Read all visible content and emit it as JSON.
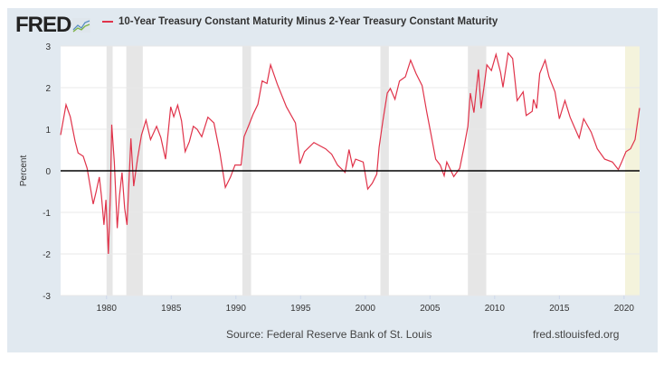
{
  "header": {
    "logo": "FRED",
    "legend_label": "10-Year Treasury Constant Maturity Minus 2-Year Treasury Constant Maturity"
  },
  "footer": {
    "source": "Source: Federal Reserve Bank of St. Louis",
    "site": "fred.stlouisfed.org"
  },
  "colors": {
    "series": "#e0334a",
    "recession": "#e6e6e6",
    "highlight": "#f4f3dc",
    "panel": "#e1e9f0"
  },
  "chart_data": {
    "type": "line",
    "title": "",
    "xlabel": "",
    "ylabel": "Percent",
    "xlim": [
      1976.45,
      2021.2
    ],
    "ylim": [
      -3,
      3
    ],
    "yticks": [
      "3",
      "2",
      "1",
      "0",
      "-1",
      "-2",
      "-3"
    ],
    "xticks": [
      "1980",
      "1985",
      "1990",
      "1995",
      "2000",
      "2005",
      "2010",
      "2015",
      "2020"
    ],
    "grid": true,
    "legend_position": "top",
    "recessions": [
      [
        1980.0,
        1980.47
      ],
      [
        1981.53,
        1982.8
      ],
      [
        1990.5,
        1991.17
      ],
      [
        2001.17,
        2001.82
      ],
      [
        2007.93,
        2009.35
      ]
    ],
    "highlight_band": [
      2020.08,
      2021.2
    ],
    "series": [
      {
        "name": "10-Year Treasury Constant Maturity Minus 2-Year Treasury Constant Maturity",
        "x": [
          1976.45,
          1976.87,
          1977.2,
          1977.57,
          1977.8,
          1978.2,
          1978.5,
          1978.97,
          1979.2,
          1979.44,
          1979.6,
          1979.8,
          1979.95,
          1980.14,
          1980.3,
          1980.4,
          1980.6,
          1980.83,
          1981.0,
          1981.2,
          1981.4,
          1981.58,
          1981.88,
          1982.1,
          1982.4,
          1982.7,
          1983.05,
          1983.4,
          1983.87,
          1984.2,
          1984.56,
          1984.96,
          1985.2,
          1985.5,
          1985.8,
          1986.08,
          1986.4,
          1986.71,
          1987.0,
          1987.36,
          1987.83,
          1988.3,
          1988.76,
          1989.18,
          1989.58,
          1989.93,
          1990.4,
          1990.63,
          1991.0,
          1991.33,
          1991.7,
          1992.03,
          1992.4,
          1992.68,
          1993.2,
          1993.9,
          1994.6,
          1994.95,
          1995.3,
          1996.03,
          1996.5,
          1996.92,
          1997.4,
          1997.85,
          1998.44,
          1998.74,
          1999.02,
          1999.25,
          1999.84,
          2000.19,
          2000.54,
          2000.89,
          2001.07,
          2001.35,
          2001.7,
          2001.94,
          2002.29,
          2002.64,
          2003.1,
          2003.5,
          2003.92,
          2004.39,
          2004.74,
          2005.09,
          2005.44,
          2005.79,
          2006.1,
          2006.3,
          2006.84,
          2007.3,
          2007.65,
          2007.93,
          2008.12,
          2008.4,
          2008.75,
          2008.94,
          2009.17,
          2009.4,
          2009.75,
          2010.1,
          2010.45,
          2010.64,
          2011.04,
          2011.39,
          2011.74,
          2012.2,
          2012.44,
          2012.9,
          2013.0,
          2013.25,
          2013.48,
          2013.9,
          2014.2,
          2014.66,
          2015.0,
          2015.43,
          2015.83,
          2016.18,
          2016.53,
          2016.88,
          2017.46,
          2017.93,
          2018.5,
          2019.1,
          2019.56,
          2019.8,
          2020.15,
          2020.5,
          2020.85,
          2021.2
        ],
        "values": [
          0.86,
          1.59,
          1.3,
          0.71,
          0.43,
          0.35,
          0.06,
          -0.8,
          -0.5,
          -0.15,
          -0.6,
          -1.3,
          -0.7,
          -2.0,
          -0.5,
          1.11,
          0.2,
          -1.38,
          -0.6,
          -0.04,
          -0.9,
          -1.3,
          0.78,
          -0.37,
          0.3,
          0.86,
          1.22,
          0.75,
          1.07,
          0.8,
          0.28,
          1.54,
          1.3,
          1.58,
          1.2,
          0.46,
          0.7,
          1.07,
          1.0,
          0.82,
          1.29,
          1.15,
          0.43,
          -0.4,
          -0.15,
          0.14,
          0.14,
          0.82,
          1.1,
          1.36,
          1.6,
          2.16,
          2.1,
          2.55,
          2.08,
          1.54,
          1.15,
          0.17,
          0.46,
          0.68,
          0.6,
          0.53,
          0.4,
          0.14,
          -0.04,
          0.51,
          0.1,
          0.28,
          0.21,
          -0.44,
          -0.3,
          -0.08,
          0.57,
          1.18,
          1.87,
          1.98,
          1.72,
          2.16,
          2.26,
          2.66,
          2.34,
          2.05,
          1.43,
          0.86,
          0.28,
          0.14,
          -0.12,
          0.21,
          -0.14,
          0.06,
          0.6,
          1.07,
          1.87,
          1.4,
          2.44,
          1.5,
          2.01,
          2.55,
          2.41,
          2.8,
          2.37,
          2.01,
          2.83,
          2.7,
          1.69,
          1.9,
          1.33,
          1.43,
          1.72,
          1.5,
          2.34,
          2.66,
          2.26,
          1.9,
          1.25,
          1.69,
          1.29,
          1.04,
          0.79,
          1.25,
          0.93,
          0.53,
          0.28,
          0.21,
          0.03,
          0.2,
          0.46,
          0.53,
          0.75,
          1.51
        ]
      }
    ]
  }
}
